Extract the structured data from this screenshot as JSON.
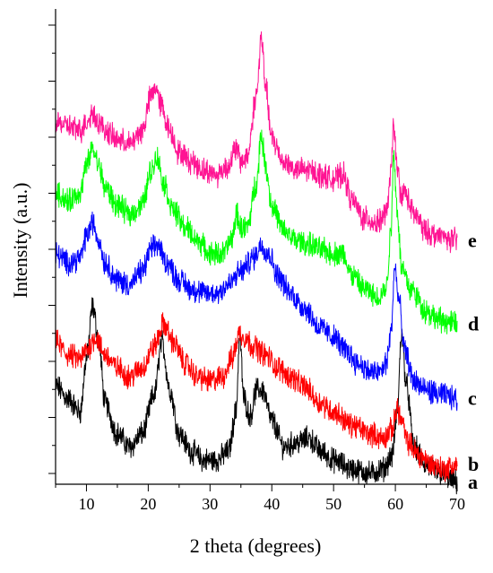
{
  "chart_data": {
    "type": "line",
    "xlabel": "2 theta (degrees)",
    "ylabel": "Intensity (a.u.)",
    "xlim": [
      5,
      70
    ],
    "xticks": [
      10,
      20,
      30,
      40,
      50,
      60,
      70
    ],
    "xtick_labels": [
      "10",
      "20",
      "30",
      "40",
      "50",
      "60",
      "70"
    ],
    "y_tick_labels_shown": false,
    "grid": false,
    "series": [
      {
        "name": "a",
        "color": "#000000",
        "points": [
          [
            5,
            0.2
          ],
          [
            7,
            0.17
          ],
          [
            9,
            0.14
          ],
          [
            10,
            0.26
          ],
          [
            11,
            0.38
          ],
          [
            12,
            0.3
          ],
          [
            13,
            0.16
          ],
          [
            15,
            0.09
          ],
          [
            17,
            0.06
          ],
          [
            19,
            0.09
          ],
          [
            21,
            0.18
          ],
          [
            22.2,
            0.3
          ],
          [
            23.5,
            0.19
          ],
          [
            25,
            0.09
          ],
          [
            27,
            0.05
          ],
          [
            29,
            0.03
          ],
          [
            31,
            0.03
          ],
          [
            33,
            0.05
          ],
          [
            34.2,
            0.14
          ],
          [
            34.8,
            0.31
          ],
          [
            35.5,
            0.17
          ],
          [
            36.5,
            0.13
          ],
          [
            37.5,
            0.19
          ],
          [
            38.5,
            0.19
          ],
          [
            40,
            0.12
          ],
          [
            42,
            0.06
          ],
          [
            44,
            0.07
          ],
          [
            46,
            0.08
          ],
          [
            48,
            0.05
          ],
          [
            50,
            0.03
          ],
          [
            53,
            0.01
          ],
          [
            56,
            0.0
          ],
          [
            58,
            0.01
          ],
          [
            59.5,
            0.04
          ],
          [
            60.3,
            0.14
          ],
          [
            61,
            0.32
          ],
          [
            61.8,
            0.2
          ],
          [
            63,
            0.06
          ],
          [
            65,
            0.02
          ],
          [
            67,
            0.0
          ],
          [
            70,
            -0.02
          ]
        ]
      },
      {
        "name": "b",
        "color": "#ff0000",
        "points": [
          [
            5,
            0.3
          ],
          [
            7,
            0.27
          ],
          [
            9,
            0.26
          ],
          [
            10,
            0.28
          ],
          [
            11.5,
            0.31
          ],
          [
            13,
            0.27
          ],
          [
            15,
            0.24
          ],
          [
            17,
            0.22
          ],
          [
            19,
            0.24
          ],
          [
            21,
            0.29
          ],
          [
            22.5,
            0.34
          ],
          [
            24,
            0.3
          ],
          [
            26,
            0.25
          ],
          [
            28,
            0.22
          ],
          [
            30,
            0.21
          ],
          [
            32,
            0.22
          ],
          [
            33.5,
            0.26
          ],
          [
            34.8,
            0.32
          ],
          [
            35.5,
            0.31
          ],
          [
            37,
            0.29
          ],
          [
            39,
            0.27
          ],
          [
            41,
            0.24
          ],
          [
            43,
            0.22
          ],
          [
            45,
            0.2
          ],
          [
            48,
            0.16
          ],
          [
            50,
            0.14
          ],
          [
            53,
            0.11
          ],
          [
            56,
            0.09
          ],
          [
            58,
            0.08
          ],
          [
            59.5,
            0.1
          ],
          [
            60.3,
            0.15
          ],
          [
            61,
            0.12
          ],
          [
            62,
            0.07
          ],
          [
            64,
            0.04
          ],
          [
            66,
            0.02
          ],
          [
            68,
            0.01
          ],
          [
            70,
            0.02
          ]
        ]
      },
      {
        "name": "c",
        "color": "#0000ff",
        "points": [
          [
            5,
            0.5
          ],
          [
            7,
            0.48
          ],
          [
            9,
            0.49
          ],
          [
            10,
            0.54
          ],
          [
            11,
            0.57
          ],
          [
            12,
            0.53
          ],
          [
            13,
            0.48
          ],
          [
            15,
            0.44
          ],
          [
            17,
            0.43
          ],
          [
            19,
            0.46
          ],
          [
            20.5,
            0.51
          ],
          [
            21.5,
            0.52
          ],
          [
            23,
            0.48
          ],
          [
            25,
            0.44
          ],
          [
            27,
            0.42
          ],
          [
            29,
            0.41
          ],
          [
            31,
            0.41
          ],
          [
            33,
            0.43
          ],
          [
            35,
            0.46
          ],
          [
            37,
            0.49
          ],
          [
            38.3,
            0.52
          ],
          [
            39.5,
            0.5
          ],
          [
            41,
            0.45
          ],
          [
            43,
            0.41
          ],
          [
            45,
            0.38
          ],
          [
            48,
            0.33
          ],
          [
            50,
            0.31
          ],
          [
            52,
            0.28
          ],
          [
            54,
            0.25
          ],
          [
            56,
            0.23
          ],
          [
            57.5,
            0.23
          ],
          [
            58.5,
            0.25
          ],
          [
            59.3,
            0.32
          ],
          [
            59.9,
            0.47
          ],
          [
            60.5,
            0.4
          ],
          [
            61.5,
            0.28
          ],
          [
            63,
            0.21
          ],
          [
            65,
            0.19
          ],
          [
            67,
            0.18
          ],
          [
            70,
            0.17
          ]
        ]
      },
      {
        "name": "d",
        "color": "#00ff00",
        "points": [
          [
            5,
            0.64
          ],
          [
            7,
            0.62
          ],
          [
            9,
            0.64
          ],
          [
            10,
            0.7
          ],
          [
            11,
            0.74
          ],
          [
            12,
            0.7
          ],
          [
            13,
            0.65
          ],
          [
            15,
            0.61
          ],
          [
            17,
            0.59
          ],
          [
            19,
            0.61
          ],
          [
            20.5,
            0.69
          ],
          [
            21.4,
            0.72
          ],
          [
            22.5,
            0.66
          ],
          [
            24,
            0.6
          ],
          [
            26,
            0.56
          ],
          [
            28,
            0.53
          ],
          [
            30,
            0.5
          ],
          [
            32,
            0.5
          ],
          [
            33.5,
            0.53
          ],
          [
            34.3,
            0.59
          ],
          [
            35,
            0.56
          ],
          [
            36,
            0.56
          ],
          [
            37.5,
            0.66
          ],
          [
            38.3,
            0.77
          ],
          [
            39,
            0.7
          ],
          [
            40,
            0.61
          ],
          [
            42,
            0.55
          ],
          [
            44,
            0.53
          ],
          [
            46,
            0.52
          ],
          [
            48,
            0.51
          ],
          [
            50,
            0.5
          ],
          [
            51.5,
            0.5
          ],
          [
            53,
            0.45
          ],
          [
            55,
            0.42
          ],
          [
            57,
            0.4
          ],
          [
            58.5,
            0.42
          ],
          [
            59.3,
            0.55
          ],
          [
            59.7,
            0.73
          ],
          [
            60.3,
            0.6
          ],
          [
            61,
            0.47
          ],
          [
            62.5,
            0.42
          ],
          [
            65,
            0.37
          ],
          [
            67,
            0.35
          ],
          [
            70,
            0.34
          ]
        ]
      },
      {
        "name": "e",
        "color": "#ff1493",
        "points": [
          [
            5,
            0.8
          ],
          [
            7,
            0.79
          ],
          [
            9,
            0.78
          ],
          [
            10,
            0.8
          ],
          [
            11,
            0.82
          ],
          [
            12,
            0.8
          ],
          [
            13,
            0.78
          ],
          [
            15,
            0.76
          ],
          [
            17,
            0.75
          ],
          [
            19,
            0.78
          ],
          [
            20.5,
            0.86
          ],
          [
            21.2,
            0.88
          ],
          [
            22,
            0.84
          ],
          [
            23.5,
            0.78
          ],
          [
            25,
            0.73
          ],
          [
            27,
            0.71
          ],
          [
            29,
            0.69
          ],
          [
            31,
            0.68
          ],
          [
            33,
            0.7
          ],
          [
            34.2,
            0.74
          ],
          [
            35,
            0.71
          ],
          [
            36,
            0.72
          ],
          [
            37.5,
            0.86
          ],
          [
            38.3,
            0.99
          ],
          [
            39,
            0.88
          ],
          [
            40,
            0.76
          ],
          [
            42,
            0.71
          ],
          [
            44,
            0.69
          ],
          [
            46,
            0.69
          ],
          [
            48,
            0.68
          ],
          [
            50,
            0.67
          ],
          [
            51.5,
            0.68
          ],
          [
            53,
            0.62
          ],
          [
            55,
            0.58
          ],
          [
            57,
            0.57
          ],
          [
            58.5,
            0.59
          ],
          [
            59.3,
            0.68
          ],
          [
            59.7,
            0.8
          ],
          [
            60.3,
            0.69
          ],
          [
            61,
            0.63
          ],
          [
            61.5,
            0.64
          ],
          [
            63,
            0.59
          ],
          [
            65,
            0.55
          ],
          [
            67,
            0.54
          ],
          [
            70,
            0.53
          ]
        ]
      }
    ]
  }
}
